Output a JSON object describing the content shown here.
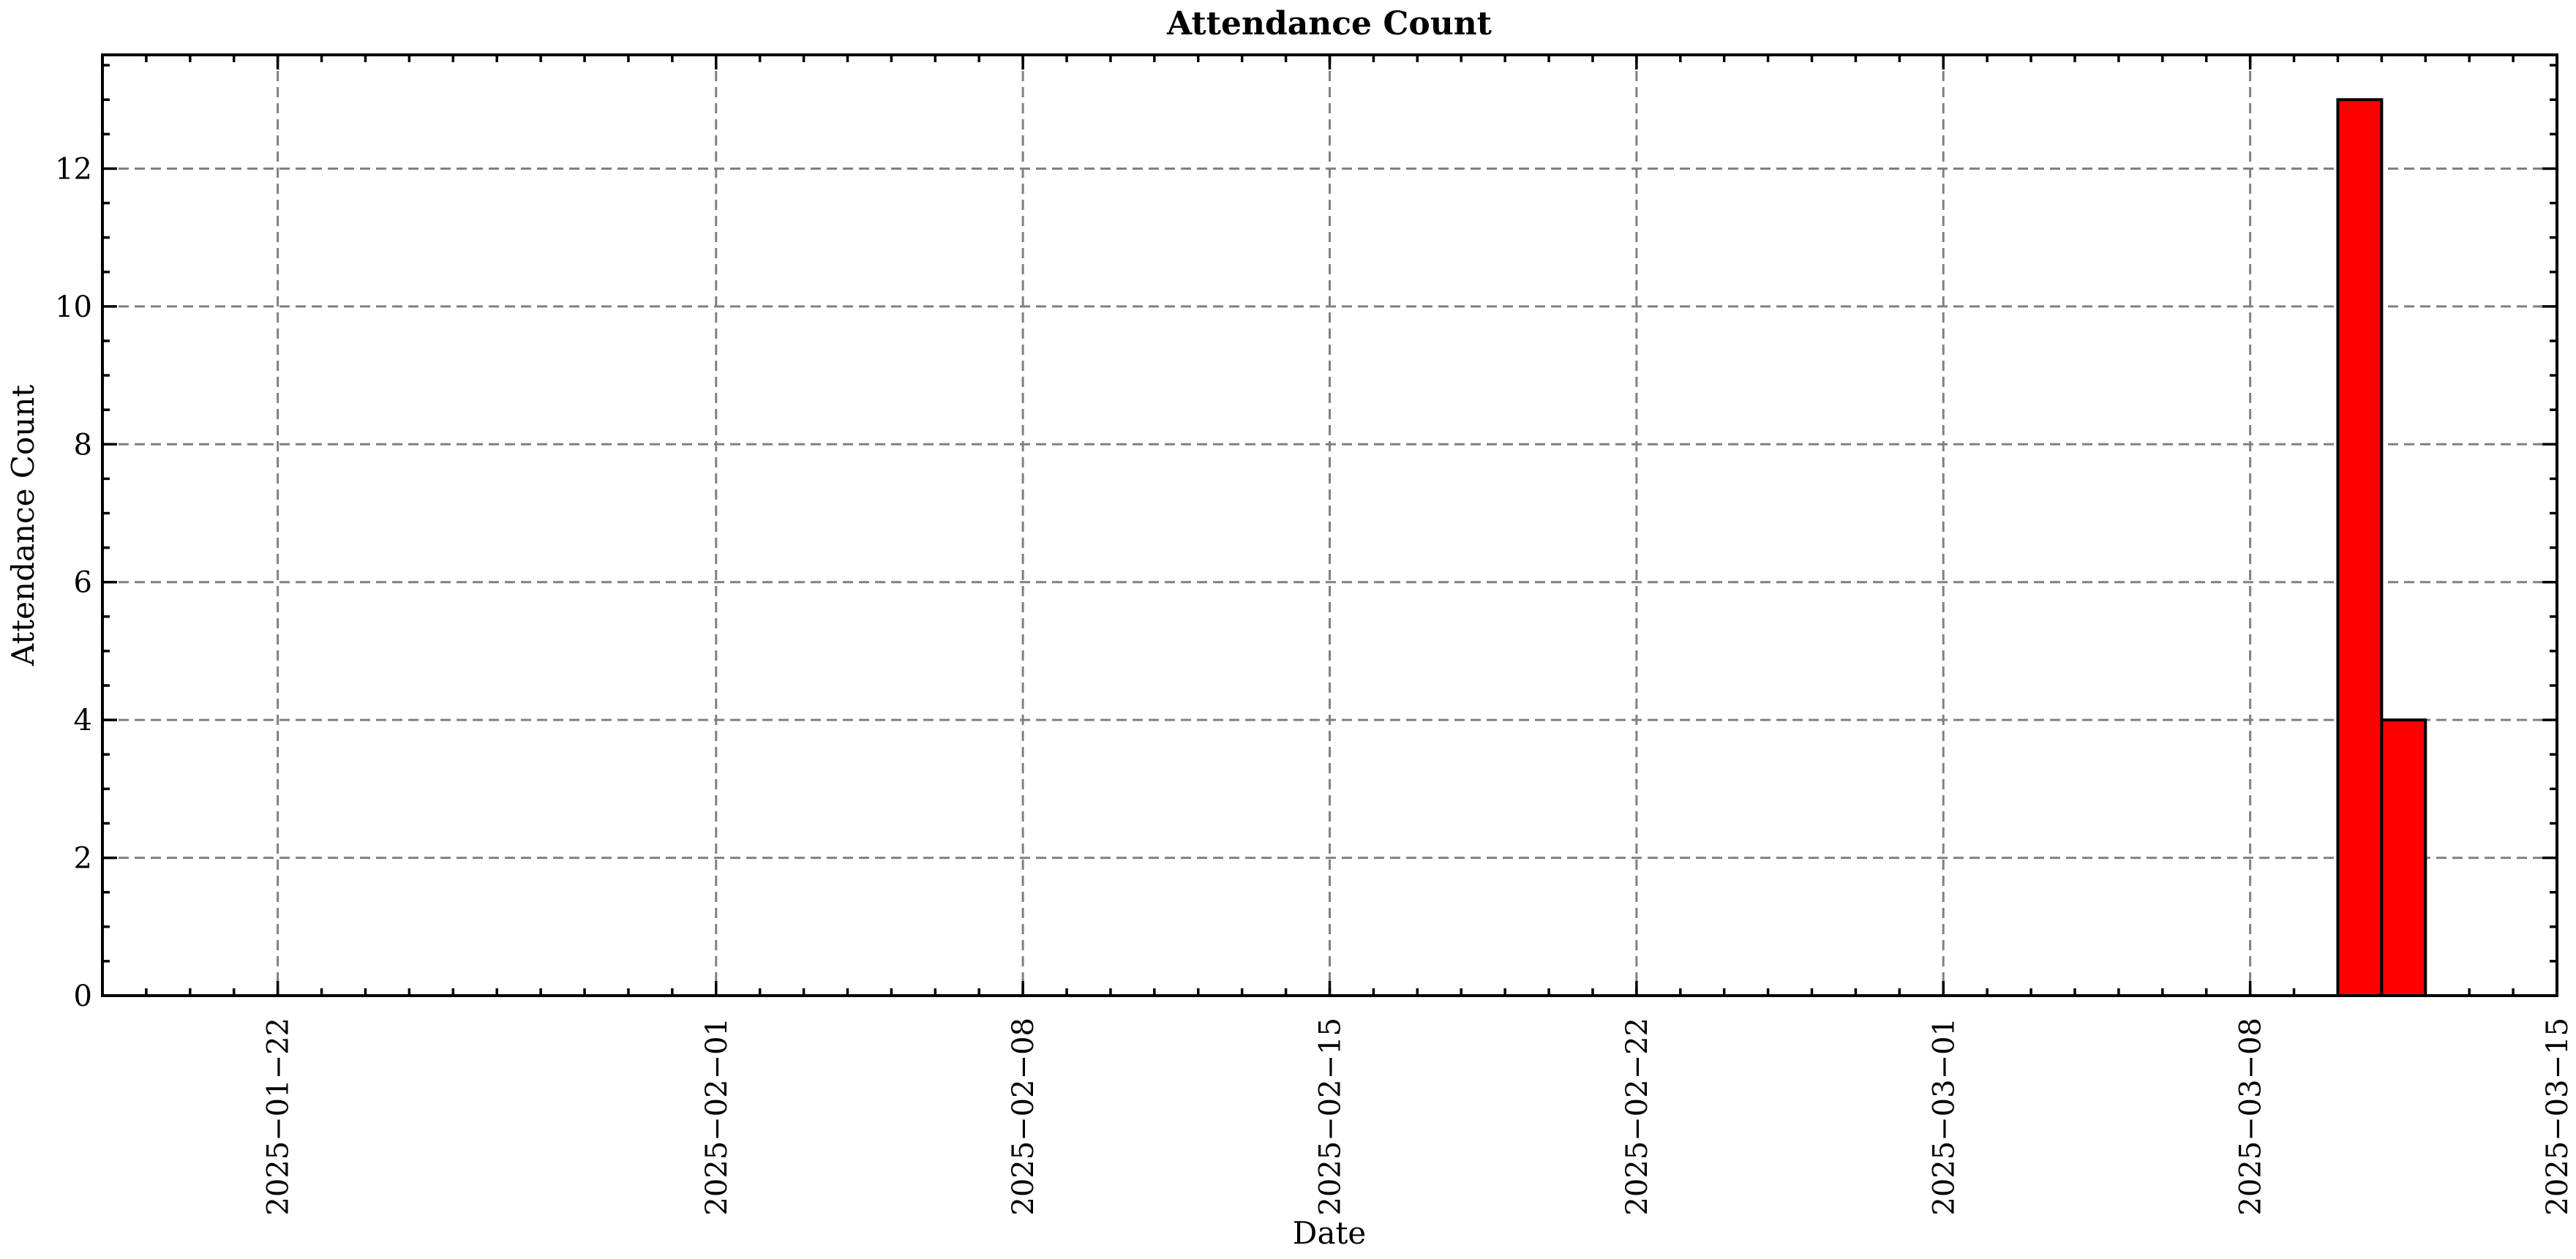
{
  "chart_data": {
    "type": "bar",
    "title": "Attendance Count",
    "xlabel": "Date",
    "ylabel": "Attendance Count",
    "x_axis": "date",
    "xlim": [
      "2025-01-18",
      "2025-03-15"
    ],
    "ylim": [
      0,
      13.65
    ],
    "x_ticks": [
      "2025-01-22",
      "2025-02-01",
      "2025-02-08",
      "2025-02-15",
      "2025-02-22",
      "2025-03-01",
      "2025-03-08",
      "2025-03-15"
    ],
    "y_ticks": [
      0,
      2,
      4,
      6,
      8,
      10,
      12
    ],
    "grid": true,
    "bar_color": "#ff0000",
    "edge_color": "#000000",
    "bars": [
      {
        "date": "2025-03-10",
        "value": 13
      },
      {
        "date": "2025-03-11",
        "value": 4
      }
    ]
  }
}
